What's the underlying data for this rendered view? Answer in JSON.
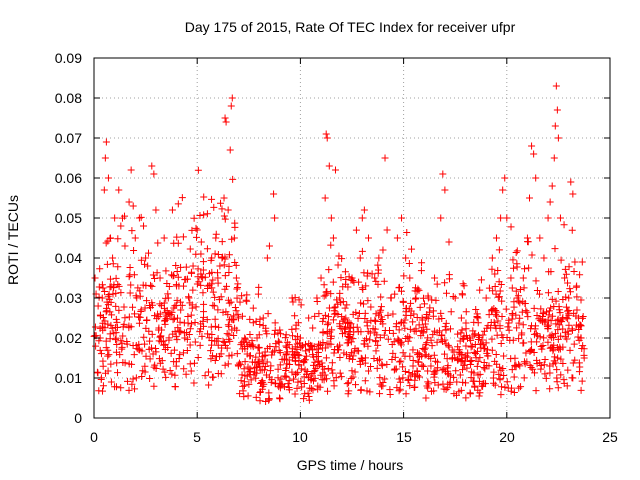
{
  "chart_data": {
    "type": "scatter",
    "title": "Day 175 of 2015, Rate Of TEC Index for receiver ufpr",
    "xlabel": "GPS time / hours",
    "ylabel": "ROTI / TECUs",
    "xlim": [
      0,
      25
    ],
    "ylim": [
      0,
      0.09
    ],
    "xticks": [
      "0",
      "5",
      "10",
      "15",
      "20",
      "25"
    ],
    "yticks": [
      "0",
      "0.01",
      "0.02",
      "0.03",
      "0.04",
      "0.05",
      "0.06",
      "0.07",
      "0.08",
      "0.09"
    ],
    "grid": true,
    "marker": "+",
    "series": [
      {
        "name": "ROTI",
        "color": "#ff0000",
        "x_range": [
          0,
          23.75
        ],
        "points": [
          [
            0.05,
            0.035
          ],
          [
            0.1,
            0.031
          ],
          [
            0.2,
            0.028
          ],
          [
            0.3,
            0.02
          ],
          [
            0.4,
            0.03
          ],
          [
            0.5,
            0.057
          ],
          [
            0.55,
            0.065
          ],
          [
            0.6,
            0.069
          ],
          [
            0.7,
            0.06
          ],
          [
            0.8,
            0.045
          ],
          [
            0.9,
            0.04
          ],
          [
            1.0,
            0.05
          ],
          [
            1.2,
            0.057
          ],
          [
            1.3,
            0.048
          ],
          [
            1.5,
            0.043
          ],
          [
            1.7,
            0.054
          ],
          [
            1.8,
            0.062
          ],
          [
            1.9,
            0.053
          ],
          [
            2.0,
            0.045
          ],
          [
            2.2,
            0.05
          ],
          [
            2.4,
            0.048
          ],
          [
            2.5,
            0.04
          ],
          [
            2.6,
            0.038
          ],
          [
            2.8,
            0.063
          ],
          [
            2.9,
            0.061
          ],
          [
            3.0,
            0.052
          ],
          [
            3.2,
            0.035
          ],
          [
            3.4,
            0.045
          ],
          [
            3.6,
            0.03
          ],
          [
            3.8,
            0.052
          ],
          [
            4.0,
            0.033
          ],
          [
            4.2,
            0.027
          ],
          [
            4.4,
            0.02
          ],
          [
            4.6,
            0.03
          ],
          [
            4.8,
            0.038
          ],
          [
            5.0,
            0.047
          ],
          [
            5.2,
            0.044
          ],
          [
            5.3,
            0.037
          ],
          [
            5.5,
            0.033
          ],
          [
            5.7,
            0.04
          ],
          [
            5.9,
            0.045
          ],
          [
            6.0,
            0.035
          ],
          [
            6.1,
            0.038
          ],
          [
            6.2,
            0.04
          ],
          [
            6.3,
            0.055
          ],
          [
            6.35,
            0.075
          ],
          [
            6.4,
            0.074
          ],
          [
            6.5,
            0.052
          ],
          [
            6.6,
            0.067
          ],
          [
            6.65,
            0.078
          ],
          [
            6.7,
            0.08
          ],
          [
            6.8,
            0.045
          ],
          [
            6.9,
            0.035
          ],
          [
            7.0,
            0.025
          ],
          [
            7.3,
            0.02
          ],
          [
            7.6,
            0.018
          ],
          [
            7.9,
            0.02
          ],
          [
            8.2,
            0.025
          ],
          [
            8.4,
            0.04
          ],
          [
            8.5,
            0.043
          ],
          [
            8.7,
            0.056
          ],
          [
            8.75,
            0.05
          ],
          [
            9.0,
            0.022
          ],
          [
            9.3,
            0.018
          ],
          [
            9.6,
            0.03
          ],
          [
            10.0,
            0.02
          ],
          [
            10.4,
            0.025
          ],
          [
            10.8,
            0.03
          ],
          [
            11.0,
            0.035
          ],
          [
            11.2,
            0.055
          ],
          [
            11.25,
            0.071
          ],
          [
            11.3,
            0.07
          ],
          [
            11.4,
            0.063
          ],
          [
            11.5,
            0.05
          ],
          [
            11.6,
            0.045
          ],
          [
            11.7,
            0.062
          ],
          [
            11.9,
            0.03
          ],
          [
            12.2,
            0.025
          ],
          [
            12.5,
            0.035
          ],
          [
            12.9,
            0.04
          ],
          [
            13.0,
            0.05
          ],
          [
            13.1,
            0.052
          ],
          [
            13.3,
            0.045
          ],
          [
            13.6,
            0.035
          ],
          [
            13.8,
            0.04
          ],
          [
            14.0,
            0.042
          ],
          [
            14.1,
            0.065
          ],
          [
            14.2,
            0.047
          ],
          [
            14.4,
            0.03
          ],
          [
            14.7,
            0.045
          ],
          [
            14.9,
            0.05
          ],
          [
            15.1,
            0.04
          ],
          [
            15.3,
            0.035
          ],
          [
            15.6,
            0.03
          ],
          [
            15.9,
            0.025
          ],
          [
            16.2,
            0.03
          ],
          [
            16.5,
            0.035
          ],
          [
            16.8,
            0.05
          ],
          [
            16.9,
            0.061
          ],
          [
            17.0,
            0.057
          ],
          [
            17.2,
            0.044
          ],
          [
            17.5,
            0.03
          ],
          [
            17.8,
            0.025
          ],
          [
            18.2,
            0.02
          ],
          [
            18.6,
            0.025
          ],
          [
            19.0,
            0.03
          ],
          [
            19.3,
            0.04
          ],
          [
            19.5,
            0.045
          ],
          [
            19.7,
            0.05
          ],
          [
            19.8,
            0.057
          ],
          [
            19.9,
            0.06
          ],
          [
            20.0,
            0.05
          ],
          [
            20.2,
            0.035
          ],
          [
            20.5,
            0.03
          ],
          [
            20.8,
            0.035
          ],
          [
            21.0,
            0.045
          ],
          [
            21.1,
            0.055
          ],
          [
            21.2,
            0.068
          ],
          [
            21.3,
            0.066
          ],
          [
            21.4,
            0.06
          ],
          [
            21.6,
            0.045
          ],
          [
            21.8,
            0.04
          ],
          [
            22.0,
            0.05
          ],
          [
            22.1,
            0.054
          ],
          [
            22.2,
            0.058
          ],
          [
            22.3,
            0.065
          ],
          [
            22.35,
            0.073
          ],
          [
            22.4,
            0.083
          ],
          [
            22.45,
            0.077
          ],
          [
            22.5,
            0.07
          ],
          [
            22.6,
            0.05
          ],
          [
            22.8,
            0.035
          ],
          [
            23.0,
            0.03
          ],
          [
            23.1,
            0.059
          ],
          [
            23.2,
            0.056
          ],
          [
            23.3,
            0.039
          ],
          [
            23.4,
            0.027
          ],
          [
            23.6,
            0.02
          ],
          [
            23.75,
            0.015
          ]
        ]
      }
    ]
  }
}
